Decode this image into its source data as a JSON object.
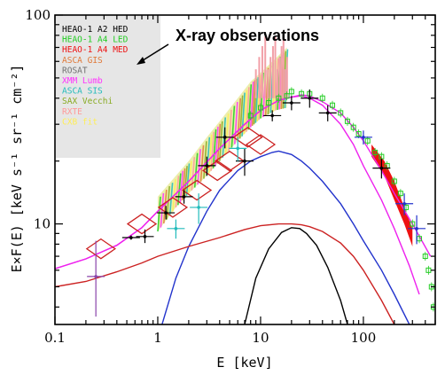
{
  "chart_data": {
    "type": "scatter",
    "xlabel": "E [keV]",
    "ylabel": "E×F(E) [keV s⁻¹ sr⁻¹ cm⁻²]",
    "xscale": "log",
    "yscale": "log",
    "xlim": [
      0.1,
      500
    ],
    "ylim": [
      3.3,
      100
    ],
    "x_tick_labels": [
      "0.1",
      "1",
      "10",
      "100"
    ],
    "x_ticks": [
      0.1,
      1,
      10,
      100
    ],
    "y_tick_labels": [
      "10",
      "100"
    ],
    "y_ticks": [
      10,
      100
    ],
    "annotation": "X-ray observations",
    "legend_placement": "top-left",
    "legend": [
      {
        "name": "HEAO-1 A2 HED",
        "color": "#000000"
      },
      {
        "name": "HEAO-1 A4 LED",
        "color": "#22cc22"
      },
      {
        "name": "HEAO-1 A4 MED",
        "color": "#ee1111"
      },
      {
        "name": "ASCA GIS",
        "color": "#e07a3a"
      },
      {
        "name": "ROSAT",
        "color": "#707070"
      },
      {
        "name": "XMM Lumb",
        "color": "#ff33ff"
      },
      {
        "name": "ASCA SIS",
        "color": "#22bbbb"
      },
      {
        "name": "SAX Vecchi",
        "color": "#88aa22"
      },
      {
        "name": "RXTE",
        "color": "#ff9999"
      },
      {
        "name": "CXB fit",
        "color": "#ffee55"
      }
    ],
    "curves": [
      {
        "color": "#ee22ee",
        "points": [
          [
            0.1,
            6.1
          ],
          [
            0.2,
            6.8
          ],
          [
            0.4,
            7.9
          ],
          [
            0.7,
            9.6
          ],
          [
            1,
            11.5
          ],
          [
            2,
            16
          ],
          [
            4,
            23
          ],
          [
            7,
            30
          ],
          [
            10,
            35
          ],
          [
            15,
            39
          ],
          [
            20,
            40.5
          ],
          [
            25,
            41
          ],
          [
            30,
            40
          ],
          [
            40,
            37
          ],
          [
            60,
            30
          ],
          [
            80,
            24
          ],
          [
            100,
            19
          ],
          [
            150,
            13
          ],
          [
            200,
            9.5
          ],
          [
            280,
            6.3
          ],
          [
            350,
            4.6
          ]
        ]
      },
      {
        "color": "#ee22ee",
        "points": [
          [
            0.1,
            6.1
          ],
          [
            0.2,
            6.8
          ],
          [
            0.4,
            7.9
          ],
          [
            0.7,
            9.6
          ],
          [
            1,
            11.5
          ],
          [
            2,
            16
          ],
          [
            4,
            23
          ],
          [
            7,
            30
          ],
          [
            10,
            35
          ],
          [
            15,
            39
          ],
          [
            20,
            40.5
          ],
          [
            25,
            41.5
          ],
          [
            30,
            41
          ],
          [
            40,
            38.5
          ],
          [
            60,
            34
          ],
          [
            80,
            29
          ],
          [
            100,
            25
          ],
          [
            150,
            18
          ],
          [
            200,
            14
          ],
          [
            300,
            10
          ],
          [
            450,
            7
          ]
        ]
      },
      {
        "color": "#2233cc",
        "points": [
          [
            1.1,
            3.3
          ],
          [
            1.5,
            5.5
          ],
          [
            2,
            7.8
          ],
          [
            3,
            11.5
          ],
          [
            4,
            14.5
          ],
          [
            6,
            18
          ],
          [
            8,
            20
          ],
          [
            10,
            21
          ],
          [
            13,
            22
          ],
          [
            15,
            22.3
          ],
          [
            20,
            21.5
          ],
          [
            25,
            20
          ],
          [
            30,
            18.5
          ],
          [
            40,
            16
          ],
          [
            60,
            12.5
          ],
          [
            80,
            10
          ],
          [
            100,
            8.3
          ],
          [
            150,
            6
          ],
          [
            200,
            4.6
          ],
          [
            280,
            3.3
          ]
        ]
      },
      {
        "color": "#cc2222",
        "points": [
          [
            0.1,
            5
          ],
          [
            0.2,
            5.3
          ],
          [
            0.4,
            5.9
          ],
          [
            0.7,
            6.5
          ],
          [
            1,
            7
          ],
          [
            2,
            7.8
          ],
          [
            4,
            8.6
          ],
          [
            7,
            9.4
          ],
          [
            10,
            9.8
          ],
          [
            15,
            10
          ],
          [
            20,
            10
          ],
          [
            25,
            9.9
          ],
          [
            30,
            9.7
          ],
          [
            40,
            9.2
          ],
          [
            60,
            8.1
          ],
          [
            80,
            7
          ],
          [
            100,
            6
          ],
          [
            150,
            4.3
          ],
          [
            200,
            3.3
          ]
        ]
      },
      {
        "color": "#000000",
        "points": [
          [
            7,
            3.3
          ],
          [
            9,
            5.5
          ],
          [
            12,
            7.6
          ],
          [
            16,
            9.1
          ],
          [
            20,
            9.6
          ],
          [
            24,
            9.5
          ],
          [
            28,
            9
          ],
          [
            35,
            7.9
          ],
          [
            45,
            6.2
          ],
          [
            60,
            4.3
          ],
          [
            70,
            3.3
          ]
        ]
      }
    ],
    "error_points": [
      {
        "x": 0.25,
        "y": 5.6,
        "ylo": 3.6,
        "yhi": 8.3,
        "color": "#8844aa"
      },
      {
        "x": 0.55,
        "y": 8.6,
        "ylo": 8.4,
        "yhi": 8.8,
        "color": "#000000"
      },
      {
        "x": 0.75,
        "y": 8.7,
        "ylo": 8.1,
        "yhi": 9.4,
        "color": "#000000"
      },
      {
        "x": 1.2,
        "y": 11.3,
        "ylo": 10.5,
        "yhi": 12.2,
        "color": "#000000"
      },
      {
        "x": 1.8,
        "y": 13.5,
        "ylo": 12.5,
        "yhi": 14.5,
        "color": "#000000"
      },
      {
        "x": 3,
        "y": 19,
        "ylo": 17,
        "yhi": 21,
        "color": "#000000"
      },
      {
        "x": 4.5,
        "y": 26,
        "ylo": 23,
        "yhi": 29,
        "color": "#000000"
      },
      {
        "x": 7,
        "y": 20,
        "ylo": 17,
        "yhi": 23,
        "color": "#000000"
      },
      {
        "x": 13,
        "y": 33,
        "ylo": 31,
        "yhi": 35,
        "color": "#000000"
      },
      {
        "x": 20,
        "y": 38,
        "ylo": 35,
        "yhi": 41,
        "color": "#000000"
      },
      {
        "x": 30,
        "y": 40,
        "ylo": 36,
        "yhi": 44,
        "color": "#000000"
      },
      {
        "x": 45,
        "y": 34,
        "ylo": 31,
        "yhi": 37,
        "color": "#000000"
      },
      {
        "x": 100,
        "y": 26,
        "ylo": 24,
        "yhi": 28,
        "color": "#2233cc"
      },
      {
        "x": 150,
        "y": 18.5,
        "ylo": 16.5,
        "yhi": 20.5,
        "color": "#000000"
      },
      {
        "x": 250,
        "y": 12.5,
        "ylo": 11,
        "yhi": 14,
        "color": "#2233cc"
      },
      {
        "x": 330,
        "y": 9.5,
        "ylo": 8,
        "yhi": 11,
        "color": "#2233cc"
      },
      {
        "x": 2.5,
        "y": 12,
        "ylo": 10,
        "yhi": 14,
        "color": "#22bbbb"
      },
      {
        "x": 1.5,
        "y": 9.5,
        "ylo": 8.5,
        "yhi": 10.5,
        "color": "#22bbbb"
      },
      {
        "x": 6,
        "y": 23,
        "ylo": 20,
        "yhi": 26,
        "color": "#22bbbb"
      }
    ],
    "diamonds": [
      {
        "x": 0.28,
        "y": 7.6
      },
      {
        "x": 0.7,
        "y": 10
      },
      {
        "x": 1.4,
        "y": 12
      },
      {
        "x": 2.4,
        "y": 14.5
      },
      {
        "x": 3.8,
        "y": 18
      },
      {
        "x": 5,
        "y": 20
      },
      {
        "x": 7.5,
        "y": 26
      },
      {
        "x": 10,
        "y": 24
      }
    ],
    "green_points": [
      [
        8,
        33
      ],
      [
        10,
        36
      ],
      [
        12,
        38
      ],
      [
        15,
        40
      ],
      [
        18,
        41
      ],
      [
        20,
        43
      ],
      [
        25,
        42
      ],
      [
        30,
        42
      ],
      [
        40,
        40
      ],
      [
        50,
        37
      ],
      [
        60,
        34
      ],
      [
        70,
        31
      ],
      [
        80,
        29
      ],
      [
        90,
        27
      ],
      [
        110,
        25
      ],
      [
        130,
        22
      ],
      [
        150,
        21
      ],
      [
        170,
        19
      ],
      [
        200,
        16
      ],
      [
        230,
        14
      ],
      [
        260,
        12
      ],
      [
        300,
        10
      ],
      [
        350,
        8.5
      ],
      [
        400,
        7
      ],
      [
        430,
        6
      ],
      [
        460,
        5
      ],
      [
        480,
        4
      ]
    ],
    "band_lower": [
      [
        1,
        9.2
      ],
      [
        1.5,
        12
      ],
      [
        2,
        14
      ],
      [
        3,
        17
      ],
      [
        4,
        20
      ],
      [
        6,
        25
      ],
      [
        8,
        29
      ],
      [
        10,
        32
      ],
      [
        14,
        35
      ],
      [
        18,
        36
      ]
    ],
    "band_upper": [
      [
        1,
        13.5
      ],
      [
        1.5,
        17
      ],
      [
        2,
        20
      ],
      [
        3,
        26
      ],
      [
        4,
        31
      ],
      [
        6,
        40
      ],
      [
        8,
        48
      ],
      [
        10,
        53
      ],
      [
        14,
        62
      ],
      [
        18,
        70
      ]
    ],
    "red_band": [
      [
        120,
        24
      ],
      [
        160,
        20
      ],
      [
        200,
        16
      ],
      [
        250,
        12
      ],
      [
        300,
        9.5
      ],
      [
        300,
        7.8
      ],
      [
        250,
        10
      ],
      [
        200,
        13
      ],
      [
        160,
        17
      ],
      [
        120,
        21
      ]
    ]
  }
}
